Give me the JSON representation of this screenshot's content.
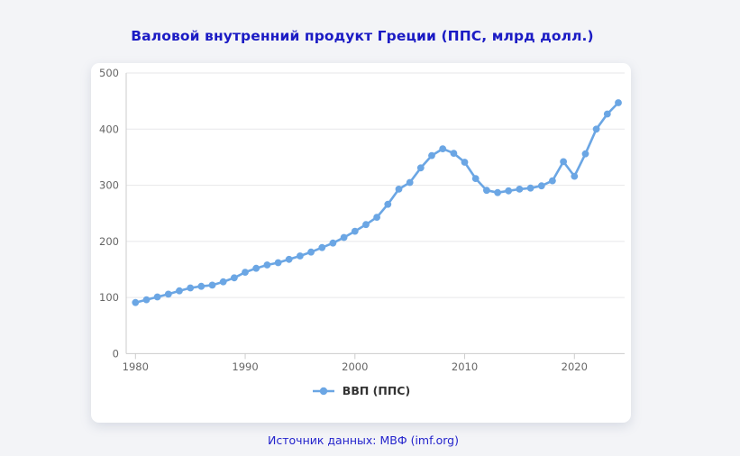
{
  "page": {
    "title": "Валовой внутренний продукт Греции (ППС, млрд долл.)",
    "source_note": "Источник данных: МВФ (imf.org)"
  },
  "legend": {
    "series_label": "ВВП (ППС)"
  },
  "colors": {
    "series_blue": "#6ba6e4",
    "title_blue": "#1b1bc4",
    "source_blue": "#2424cc",
    "axis_text": "#666666",
    "gridline": "#e7e7ea",
    "axis_line": "#cccccc",
    "legend_text": "#333333",
    "card_bg": "#ffffff",
    "page_bg": "#f3f4f7"
  },
  "chart_data": {
    "type": "line",
    "title": "Валовой внутренний продукт Греции (ППС, млрд долл.)",
    "xlabel": "",
    "ylabel": "",
    "xlim": [
      1980,
      2024
    ],
    "ylim": [
      0,
      500
    ],
    "grid": true,
    "legend_position": "bottom",
    "marker": "circle",
    "x_tick_labels": [
      "1980",
      "1990",
      "2000",
      "2010",
      "2020"
    ],
    "y_tick_labels": [
      "0",
      "100",
      "200",
      "300",
      "400",
      "500"
    ],
    "series": [
      {
        "name": "ВВП (ППС)",
        "x": [
          1980,
          1981,
          1982,
          1983,
          1984,
          1985,
          1986,
          1987,
          1988,
          1989,
          1990,
          1991,
          1992,
          1993,
          1994,
          1995,
          1996,
          1997,
          1998,
          1999,
          2000,
          2001,
          2002,
          2003,
          2004,
          2005,
          2006,
          2007,
          2008,
          2009,
          2010,
          2011,
          2012,
          2013,
          2014,
          2015,
          2016,
          2017,
          2018,
          2019,
          2020,
          2021,
          2022,
          2023,
          2024
        ],
        "values": [
          91,
          96,
          101,
          106,
          112,
          117,
          120,
          122,
          128,
          135,
          145,
          152,
          158,
          162,
          168,
          174,
          181,
          189,
          197,
          207,
          218,
          230,
          243,
          266,
          293,
          305,
          331,
          353,
          365,
          357,
          341,
          312,
          291,
          287,
          290,
          293,
          295,
          299,
          308,
          342,
          316,
          356,
          400,
          427,
          447
        ]
      }
    ]
  }
}
